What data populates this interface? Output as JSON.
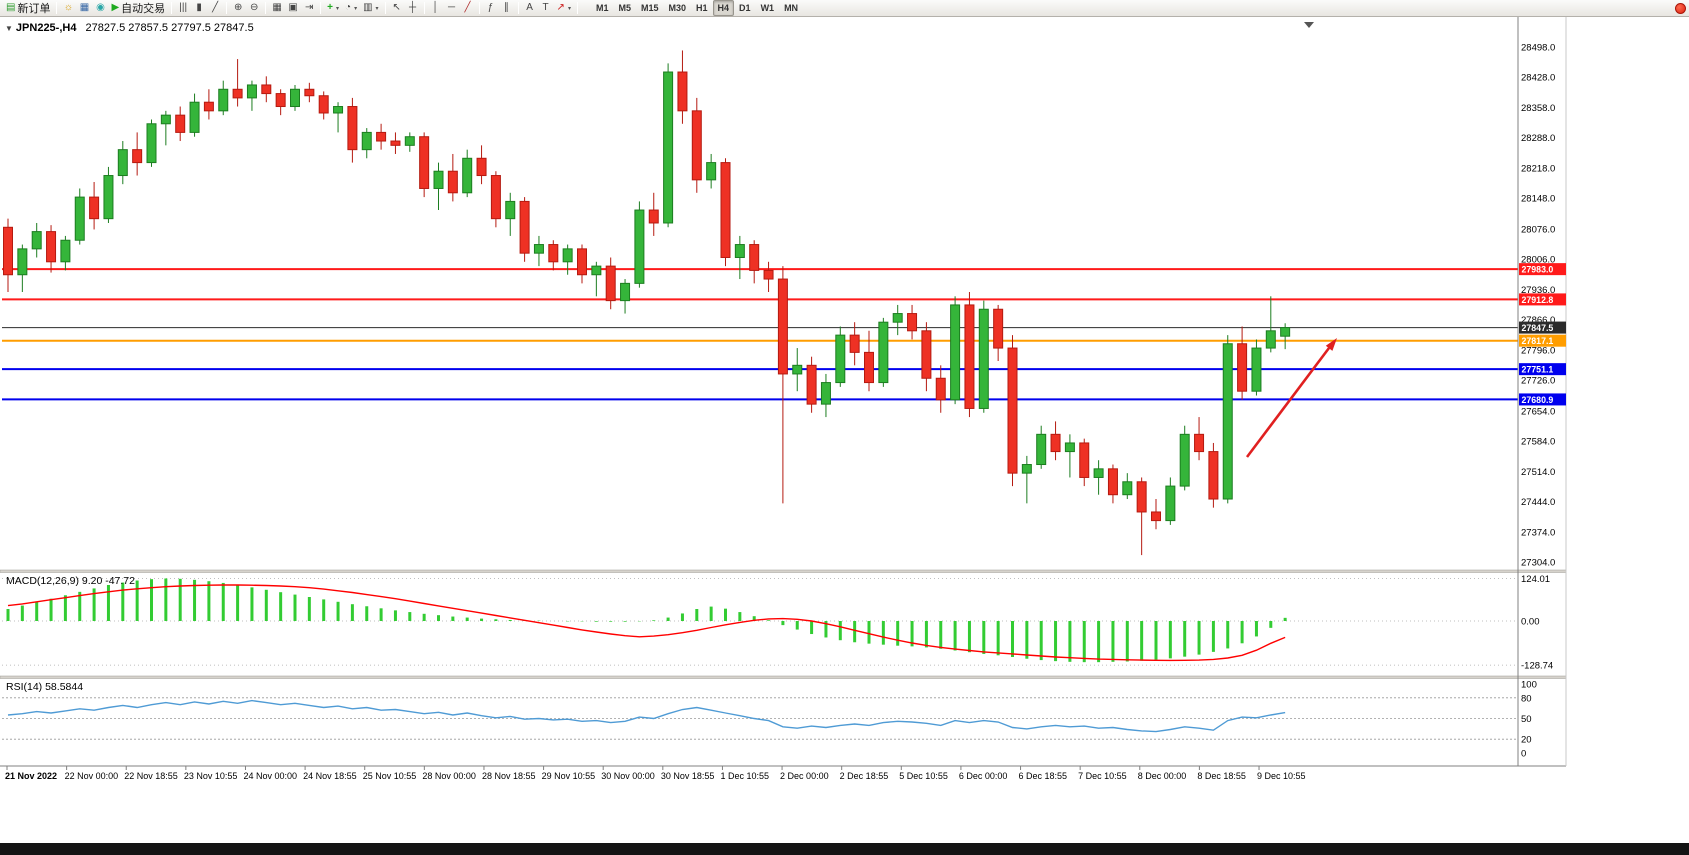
{
  "toolbar": {
    "timeframes": [
      "M1",
      "M5",
      "M15",
      "M30",
      "H1",
      "H4",
      "D1",
      "W1",
      "MN"
    ],
    "active_timeframe": "H4",
    "buttons": [
      {
        "name": "new-order",
        "icon": "new-order-icon",
        "label": "新订单"
      },
      {
        "sep": true
      },
      {
        "name": "market-watch",
        "icon": "market-watch-icon"
      },
      {
        "name": "data-window",
        "icon": "data-window-icon"
      },
      {
        "name": "navigator",
        "icon": "navigator-icon"
      },
      {
        "name": "autotrading",
        "icon": "autotrading-icon",
        "label": "自动交易"
      },
      {
        "sep": true
      },
      {
        "name": "bar-chart",
        "icon": "bar-chart-icon"
      },
      {
        "name": "candle-chart",
        "icon": "candlestick-icon"
      },
      {
        "name": "line-chart",
        "icon": "line-chart-icon"
      },
      {
        "sep": true
      },
      {
        "name": "zoom-in",
        "icon": "zoom-in-icon"
      },
      {
        "name": "zoom-out",
        "icon": "zoom-out-icon"
      },
      {
        "sep": true
      },
      {
        "name": "tile-windows",
        "icon": "tile-windows-icon"
      },
      {
        "name": "auto-arrange",
        "icon": "auto-arrange-icon"
      },
      {
        "name": "chart-shift",
        "icon": "chart-shift-icon"
      },
      {
        "sep": true
      },
      {
        "name": "indicators",
        "icon": "indicators-icon",
        "dropdown": true
      },
      {
        "name": "periods",
        "icon": "clock-icon",
        "dropdown": true
      },
      {
        "name": "templates",
        "icon": "templates-icon",
        "dropdown": true
      },
      {
        "sep": true
      },
      {
        "name": "cursor",
        "icon": "cursor-icon"
      },
      {
        "name": "crosshair",
        "icon": "crosshair-icon"
      },
      {
        "sep": true
      },
      {
        "name": "vertical-line",
        "icon": "vline-icon"
      },
      {
        "name": "horizontal-line",
        "icon": "hline-icon"
      },
      {
        "name": "trendline",
        "icon": "trendline-icon"
      },
      {
        "sep": true
      },
      {
        "name": "fibonacci",
        "icon": "fibonacci-icon"
      },
      {
        "name": "channel",
        "icon": "channel-icon"
      },
      {
        "sep": true
      },
      {
        "name": "text",
        "icon": "text-icon"
      },
      {
        "name": "text-label",
        "icon": "text-label-icon"
      },
      {
        "name": "arrows",
        "icon": "arrows-icon",
        "dropdown": true
      },
      {
        "sep": true
      }
    ]
  },
  "chart_header": {
    "collapse_marker": "▼",
    "symbol_period": "JPN225-,H4",
    "ohlc": "27827.5 27857.5 27797.5 27847.5"
  },
  "colors": {
    "up": "#35b53a",
    "up_border": "#1c7d20",
    "down": "#ee3124",
    "down_border": "#b51a10",
    "macd_hist": "#33cc33",
    "macd_signal": "#ff0000",
    "rsi_line": "#4f9bd5",
    "line_red": "#ff1a1a",
    "line_orange": "#ff9d00",
    "line_blue": "#0000ee",
    "current_price": "#2b2b2b",
    "arrow": "#e02020"
  },
  "chart_data": {
    "type": "candlestick",
    "symbol": "JPN225-",
    "timeframe": "H4",
    "title": "JPN225-,H4 27827.5 27857.5 27797.5 27847.5",
    "price_range": [
      27304.0,
      28498.0
    ],
    "price_scale": [
      "28498.0",
      "28428.0",
      "28358.0",
      "28288.0",
      "28218.0",
      "28148.0",
      "28076.0",
      "28006.0",
      "27936.0",
      "27866.0",
      "27796.0",
      "27726.0",
      "27654.0",
      "27584.0",
      "27514.0",
      "27444.0",
      "27374.0",
      "27304.0"
    ],
    "time_scale": [
      "21 Nov 2022",
      "22 Nov 00:00",
      "22 Nov 18:55",
      "23 Nov 10:55",
      "24 Nov 00:00",
      "24 Nov 18:55",
      "25 Nov 10:55",
      "28 Nov 00:00",
      "28 Nov 18:55",
      "29 Nov 10:55",
      "30 Nov 00:00",
      "30 Nov 18:55",
      "1 Dec 10:55",
      "2 Dec 00:00",
      "2 Dec 18:55",
      "5 Dec 10:55",
      "6 Dec 00:00",
      "6 Dec 18:55",
      "7 Dec 10:55",
      "8 Dec 00:00",
      "8 Dec 18:55",
      "9 Dec 10:55"
    ],
    "hlines": [
      {
        "price": 27983.0,
        "label": "27983.0",
        "color": "#ff1a1a",
        "width": 2,
        "role": "resistance"
      },
      {
        "price": 27912.8,
        "label": "27912.8",
        "color": "#ff1a1a",
        "width": 2,
        "role": "resistance"
      },
      {
        "price": 27847.5,
        "label": "27847.5",
        "color": "#2b2b2b",
        "width": 1,
        "role": "current-price"
      },
      {
        "price": 27817.1,
        "label": "27817.1",
        "color": "#ff9d00",
        "width": 2,
        "role": "level"
      },
      {
        "price": 27751.1,
        "label": "27751.1",
        "color": "#0000ee",
        "width": 2,
        "role": "support"
      },
      {
        "price": 27680.9,
        "label": "27680.9",
        "color": "#0000ee",
        "width": 2,
        "role": "support"
      }
    ],
    "candles": [
      [
        28080,
        28100,
        27930,
        27970
      ],
      [
        27970,
        28040,
        27930,
        28030
      ],
      [
        28030,
        28090,
        28010,
        28070
      ],
      [
        28070,
        28085,
        27975,
        28000
      ],
      [
        28000,
        28060,
        27980,
        28050
      ],
      [
        28050,
        28170,
        28040,
        28150
      ],
      [
        28150,
        28185,
        28075,
        28100
      ],
      [
        28100,
        28220,
        28090,
        28200
      ],
      [
        28200,
        28280,
        28180,
        28260
      ],
      [
        28260,
        28300,
        28200,
        28230
      ],
      [
        28230,
        28330,
        28220,
        28320
      ],
      [
        28320,
        28350,
        28270,
        28340
      ],
      [
        28340,
        28360,
        28280,
        28300
      ],
      [
        28300,
        28390,
        28290,
        28370
      ],
      [
        28370,
        28400,
        28330,
        28350
      ],
      [
        28350,
        28420,
        28340,
        28400
      ],
      [
        28400,
        28470,
        28360,
        28380
      ],
      [
        28380,
        28420,
        28350,
        28410
      ],
      [
        28410,
        28430,
        28370,
        28390
      ],
      [
        28390,
        28400,
        28340,
        28360
      ],
      [
        28360,
        28410,
        28350,
        28400
      ],
      [
        28400,
        28415,
        28370,
        28385
      ],
      [
        28385,
        28395,
        28330,
        28345
      ],
      [
        28345,
        28370,
        28300,
        28360
      ],
      [
        28360,
        28380,
        28230,
        28260
      ],
      [
        28260,
        28310,
        28240,
        28300
      ],
      [
        28300,
        28320,
        28260,
        28280
      ],
      [
        28280,
        28300,
        28250,
        28270
      ],
      [
        28270,
        28300,
        28255,
        28290
      ],
      [
        28290,
        28300,
        28150,
        28170
      ],
      [
        28170,
        28230,
        28120,
        28210
      ],
      [
        28210,
        28250,
        28140,
        28160
      ],
      [
        28160,
        28260,
        28150,
        28240
      ],
      [
        28240,
        28270,
        28180,
        28200
      ],
      [
        28200,
        28210,
        28080,
        28100
      ],
      [
        28100,
        28160,
        28060,
        28140
      ],
      [
        28140,
        28150,
        28000,
        28020
      ],
      [
        28020,
        28060,
        27990,
        28040
      ],
      [
        28040,
        28050,
        27980,
        28000
      ],
      [
        28000,
        28040,
        27970,
        28030
      ],
      [
        28030,
        28040,
        27950,
        27970
      ],
      [
        27970,
        28000,
        27920,
        27990
      ],
      [
        27990,
        28010,
        27890,
        27910
      ],
      [
        27910,
        27960,
        27880,
        27950
      ],
      [
        27950,
        28140,
        27940,
        28120
      ],
      [
        28120,
        28160,
        28060,
        28090
      ],
      [
        28090,
        28460,
        28080,
        28440
      ],
      [
        28440,
        28490,
        28320,
        28350
      ],
      [
        28350,
        28380,
        28160,
        28190
      ],
      [
        28190,
        28250,
        28170,
        28230
      ],
      [
        28230,
        28240,
        27990,
        28010
      ],
      [
        28010,
        28060,
        27960,
        28040
      ],
      [
        28040,
        28050,
        27950,
        27980
      ],
      [
        27980,
        28000,
        27930,
        27960
      ],
      [
        27960,
        27990,
        27440,
        27740
      ],
      [
        27740,
        27800,
        27700,
        27760
      ],
      [
        27760,
        27780,
        27650,
        27670
      ],
      [
        27670,
        27740,
        27640,
        27720
      ],
      [
        27720,
        27850,
        27710,
        27830
      ],
      [
        27830,
        27860,
        27760,
        27790
      ],
      [
        27790,
        27840,
        27700,
        27720
      ],
      [
        27720,
        27870,
        27710,
        27860
      ],
      [
        27860,
        27900,
        27830,
        27880
      ],
      [
        27880,
        27900,
        27820,
        27840
      ],
      [
        27840,
        27860,
        27700,
        27730
      ],
      [
        27730,
        27760,
        27650,
        27680
      ],
      [
        27680,
        27920,
        27670,
        27900
      ],
      [
        27900,
        27930,
        27640,
        27660
      ],
      [
        27660,
        27910,
        27650,
        27890
      ],
      [
        27890,
        27900,
        27770,
        27800
      ],
      [
        27800,
        27830,
        27480,
        27510
      ],
      [
        27510,
        27550,
        27440,
        27530
      ],
      [
        27530,
        27620,
        27520,
        27600
      ],
      [
        27600,
        27630,
        27540,
        27560
      ],
      [
        27560,
        27600,
        27500,
        27580
      ],
      [
        27580,
        27590,
        27480,
        27500
      ],
      [
        27500,
        27540,
        27460,
        27520
      ],
      [
        27520,
        27530,
        27440,
        27460
      ],
      [
        27460,
        27510,
        27450,
        27490
      ],
      [
        27490,
        27500,
        27320,
        27420
      ],
      [
        27420,
        27450,
        27380,
        27400
      ],
      [
        27400,
        27500,
        27390,
        27480
      ],
      [
        27480,
        27620,
        27470,
        27600
      ],
      [
        27600,
        27640,
        27540,
        27560
      ],
      [
        27560,
        27580,
        27430,
        27450
      ],
      [
        27450,
        27830,
        27440,
        27810
      ],
      [
        27810,
        27850,
        27680,
        27700
      ],
      [
        27700,
        27820,
        27690,
        27800
      ],
      [
        27800,
        27920,
        27790,
        27840
      ],
      [
        27827.5,
        27857.5,
        27797.5,
        27847.5
      ]
    ],
    "annotation_arrow": {
      "from_price": 27590,
      "to_price": 27830,
      "color": "#e02020"
    },
    "macd": {
      "label": "MACD(12,26,9) 9.20 -47.72",
      "params": "12,26,9",
      "main_value": 9.2,
      "signal_value": -47.72,
      "axis": [
        "124.01",
        "0.00",
        "-128.74"
      ],
      "histogram": [
        35,
        45,
        55,
        65,
        75,
        85,
        95,
        105,
        112,
        118,
        122,
        124,
        123,
        120,
        116,
        111,
        105,
        98,
        91,
        84,
        77,
        70,
        63,
        56,
        49,
        43,
        37,
        31,
        26,
        21,
        17,
        13,
        10,
        7,
        5,
        3,
        2,
        1,
        0,
        -1,
        -1,
        -2,
        -2,
        -2,
        -1,
        2,
        10,
        22,
        35,
        42,
        36,
        26,
        14,
        2,
        -12,
        -25,
        -38,
        -48,
        -56,
        -62,
        -66,
        -69,
        -72,
        -74,
        -77,
        -81,
        -86,
        -91,
        -96,
        -100,
        -105,
        -110,
        -114,
        -117,
        -119,
        -120,
        -120,
        -119,
        -118,
        -116,
        -113,
        -109,
        -104,
        -98,
        -90,
        -80,
        -65,
        -45,
        -20,
        9.2
      ],
      "signal": [
        45,
        50,
        56,
        62,
        68,
        74,
        80,
        85,
        90,
        94,
        97,
        100,
        102,
        103.5,
        104.5,
        105,
        105,
        104.5,
        103.5,
        102,
        100,
        97,
        93,
        88,
        83,
        77,
        71,
        65,
        58,
        51,
        44,
        37,
        30,
        23,
        16,
        9,
        2,
        -5,
        -12,
        -19,
        -26,
        -32,
        -38,
        -43,
        -46,
        -44,
        -40,
        -34,
        -27,
        -19,
        -11,
        -4,
        2,
        6,
        7,
        5,
        0,
        -8,
        -17,
        -27,
        -37,
        -47,
        -56,
        -64,
        -71,
        -77,
        -82,
        -86,
        -90,
        -93,
        -96,
        -99,
        -102,
        -105,
        -107,
        -109,
        -111,
        -112,
        -113,
        -114,
        -114.5,
        -115,
        -114.5,
        -114,
        -112,
        -108,
        -100,
        -85,
        -65,
        -47.72
      ]
    },
    "rsi": {
      "label": "RSI(14) 58.5844",
      "period": 14,
      "value": 58.5844,
      "axis": [
        "100",
        "80",
        "50",
        "20",
        "0"
      ],
      "levels": [
        80,
        50,
        20
      ],
      "values": [
        55,
        57,
        60,
        58,
        61,
        64,
        62,
        66,
        69,
        66,
        70,
        73,
        70,
        74,
        71,
        75,
        72,
        76,
        73,
        70,
        72,
        69,
        66,
        68,
        64,
        66,
        62,
        63,
        60,
        57,
        59,
        55,
        58,
        54,
        51,
        53,
        49,
        50,
        48,
        49,
        46,
        47,
        44,
        46,
        52,
        50,
        57,
        63,
        66,
        62,
        58,
        54,
        50,
        47,
        38,
        36,
        39,
        37,
        40,
        42,
        40,
        44,
        46,
        45,
        43,
        40,
        47,
        44,
        47,
        45,
        37,
        35,
        38,
        40,
        38,
        39,
        36,
        37,
        34,
        32,
        31,
        34,
        38,
        36,
        33,
        47,
        52,
        51,
        55,
        58.58
      ]
    }
  }
}
